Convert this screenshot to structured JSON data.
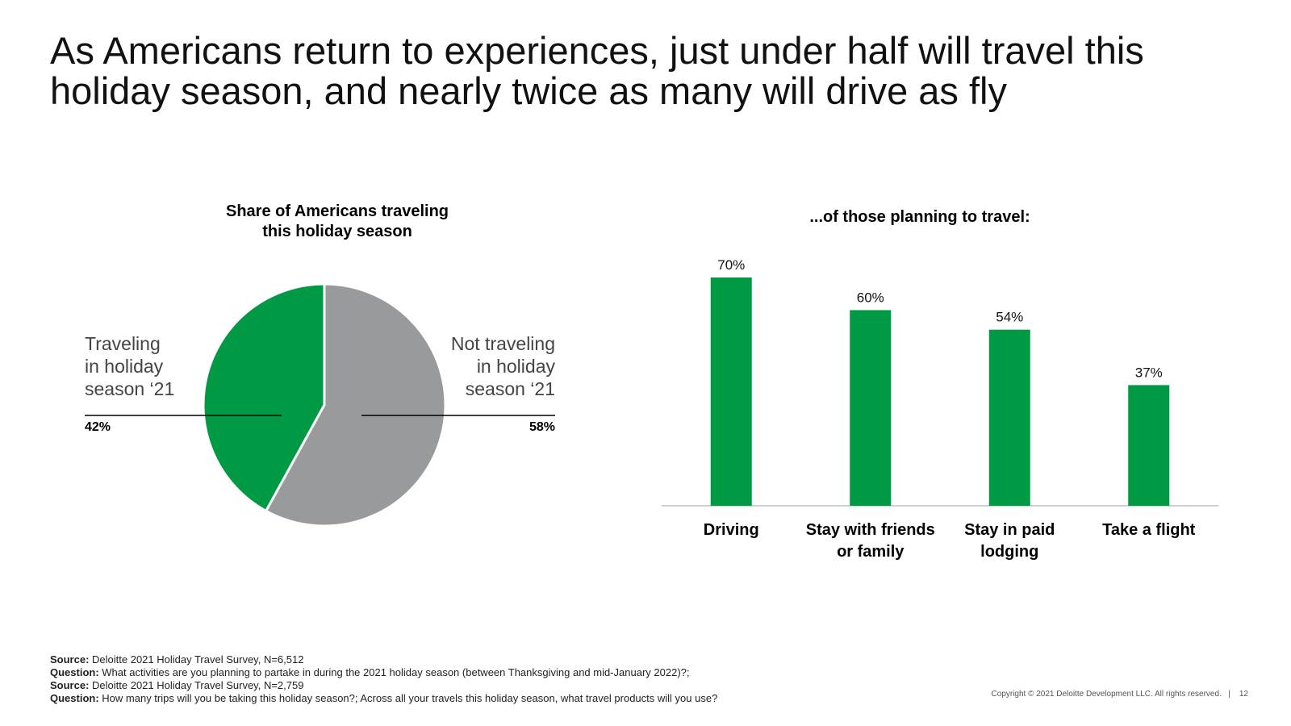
{
  "headline": {
    "line1": "As Americans return to experiences, just under half will travel this",
    "line2": "holiday season, and nearly twice as many will drive as fly"
  },
  "colors": {
    "accent": "#009a44",
    "neutral": "#999a9c",
    "axis": "#d0d0d0"
  },
  "chart_data": [
    {
      "type": "pie",
      "title_line1": "Share of Americans traveling",
      "title_line2": "this holiday season",
      "slices": [
        {
          "label_lines": [
            "Traveling",
            "in holiday",
            "season ‘21"
          ],
          "value": 42,
          "value_label": "42%",
          "color": "#009a44"
        },
        {
          "label_lines": [
            "Not traveling",
            "in holiday",
            "season ‘21"
          ],
          "value": 58,
          "value_label": "58%",
          "color": "#999a9c"
        }
      ]
    },
    {
      "type": "bar",
      "title": "...of those planning to travel:",
      "categories": [
        [
          "Driving"
        ],
        [
          "Stay with friends",
          "or family"
        ],
        [
          "Stay in paid",
          "lodging"
        ],
        [
          "Take a flight"
        ]
      ],
      "values": [
        70,
        60,
        54,
        37
      ],
      "value_labels": [
        "70%",
        "60%",
        "54%",
        "37%"
      ],
      "color": "#009a44",
      "ylim": [
        0,
        70
      ]
    }
  ],
  "footer": [
    {
      "label": "Source:",
      "text": " Deloitte 2021 Holiday Travel Survey, N=6,512"
    },
    {
      "label": "Question:",
      "text": " What activities are you planning to partake in during the 2021 holiday season (between Thanksgiving and mid-January 2022)?;"
    },
    {
      "label": "Source:",
      "text": " Deloitte 2021 Holiday Travel Survey, N=2,759"
    },
    {
      "label": "Question:",
      "text": " How many trips will you be taking this holiday season?; Across all your travels this holiday season, what travel products will you use?"
    }
  ],
  "copyright": "Copyright © 2021 Deloitte Development LLC. All rights reserved.",
  "page_number": "12"
}
